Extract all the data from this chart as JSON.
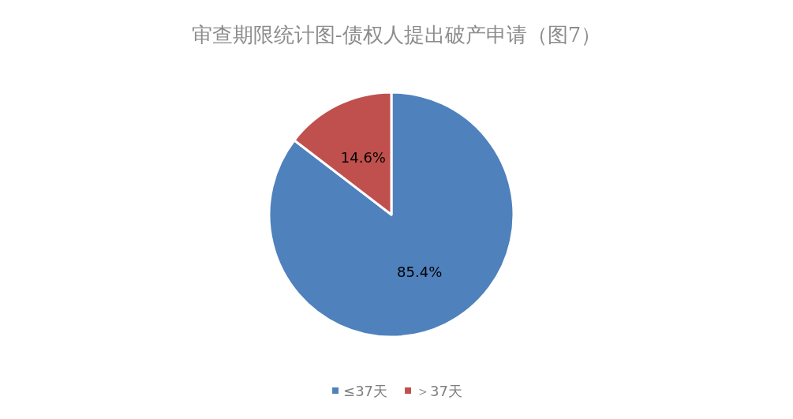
{
  "chart_data": {
    "type": "pie",
    "title": "审查期限统计图-债权人提出破产申请（图7）",
    "categories": [
      "≤37天",
      "＞37天"
    ],
    "values": [
      85.4,
      14.6
    ],
    "colors": [
      "#4f81bd",
      "#c0504d"
    ],
    "value_labels": [
      "85.4%",
      "14.6%"
    ],
    "legend": "bottom"
  }
}
